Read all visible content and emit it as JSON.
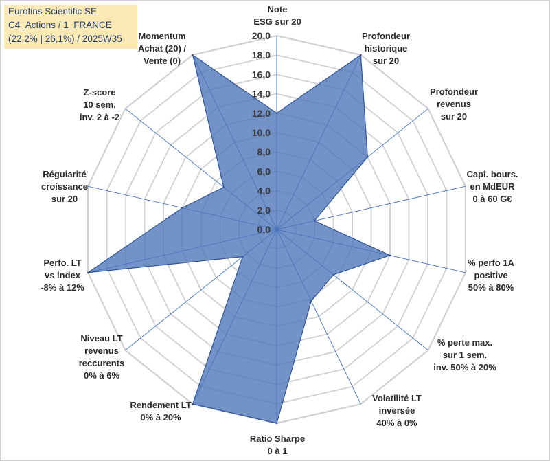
{
  "badge": {
    "line1": "Eurofins Scientific SE",
    "line2": "C4_Actions / 1_FRANCE",
    "line3": "(22,2% | 26,1%) / 2025W35"
  },
  "chart_data": {
    "type": "radar",
    "title": "",
    "r_min": 0,
    "r_max": 20,
    "ticks": [
      "0,0",
      "2,0",
      "4,0",
      "6,0",
      "8,0",
      "10,0",
      "12,0",
      "14,0",
      "16,0",
      "18,0",
      "20,0"
    ],
    "axes": [
      {
        "label": [
          "Note",
          "ESG sur 20"
        ]
      },
      {
        "label": [
          "Profondeur",
          "historique",
          "sur 20"
        ]
      },
      {
        "label": [
          "Profondeur",
          "revenus",
          "sur 20"
        ]
      },
      {
        "label": [
          "Capi. bours.",
          "en MdEUR",
          "0 à 60 G€"
        ]
      },
      {
        "label": [
          "% perfo 1A",
          "positive",
          "50% à 80%"
        ]
      },
      {
        "label": [
          "% perte max.",
          "sur 1 sem.",
          "inv. 50% à 20%"
        ]
      },
      {
        "label": [
          "Volatilité LT",
          "inversée",
          "40% à 0%"
        ]
      },
      {
        "label": [
          "Ratio Sharpe",
          "0 à 1"
        ]
      },
      {
        "label": [
          "Rendement LT",
          "0% à 20%"
        ]
      },
      {
        "label": [
          "Niveau LT",
          "revenus",
          "reccurents",
          "0% à 6%"
        ]
      },
      {
        "label": [
          "Perfo. LT",
          "vs index",
          "-8% à 12%"
        ]
      },
      {
        "label": [
          "Régularité",
          "croissance",
          "sur 20"
        ]
      },
      {
        "label": [
          "Z-score",
          "10 sem.",
          "inv. 2 à -2"
        ]
      },
      {
        "label": [
          "Momentum",
          "Achat (20) /",
          "Vente (0)"
        ]
      }
    ],
    "series": [
      {
        "values": [
          12.0,
          20.0,
          12.0,
          4.0,
          12.0,
          7.5,
          8.2,
          20.0,
          20.0,
          4.5,
          20.0,
          10.0,
          7.0,
          20.0
        ]
      }
    ],
    "colors": {
      "fill": "#4a73b8",
      "stroke": "#2f5597",
      "grid": "#d0d0d0",
      "spoke": "#4472c4"
    },
    "grid": true,
    "legend": "none"
  }
}
